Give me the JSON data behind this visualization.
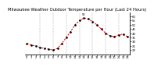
{
  "title": "Milwaukee Weather Outdoor Temperature per Hour (Last 24 Hours)",
  "hours": [
    0,
    1,
    2,
    3,
    4,
    5,
    6,
    7,
    8,
    9,
    10,
    11,
    12,
    13,
    14,
    15,
    16,
    17,
    18,
    19,
    20,
    21,
    22,
    23
  ],
  "temps": [
    28,
    26,
    25,
    23,
    22,
    21,
    20,
    22,
    28,
    35,
    42,
    50,
    55,
    58,
    57,
    54,
    50,
    45,
    40,
    37,
    36,
    38,
    39,
    36
  ],
  "line_color": "#dd0000",
  "marker_color": "#000000",
  "bg_color": "#ffffff",
  "ylim": [
    15,
    65
  ],
  "yticks": [
    20,
    25,
    30,
    35,
    40,
    45,
    50,
    55,
    60
  ],
  "grid_color": "#888888",
  "title_fontsize": 3.8,
  "tick_fontsize": 2.8,
  "peak_label": "58",
  "peak_hour": 13,
  "grid_hours": [
    3,
    6,
    9,
    12,
    15,
    18,
    21
  ]
}
